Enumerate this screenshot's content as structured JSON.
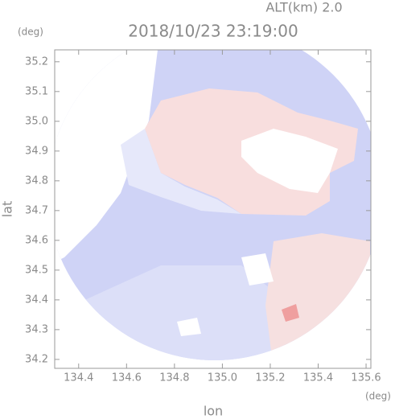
{
  "chart_data": {
    "type": "radar-map",
    "title": "2018/10/23 23:19:00",
    "subtitle": "ALT(km)  2.0",
    "y_unit": "(deg)",
    "x_unit": "(deg)",
    "x_label": "lon",
    "y_label": "lat",
    "xlim": [
      134.3,
      135.62
    ],
    "ylim": [
      34.17,
      35.24
    ],
    "xticks": [
      134.4,
      134.6,
      134.8,
      {
        "value": 135.0,
        "label": "135.0"
      },
      135.2,
      135.4,
      135.6
    ],
    "yticks": [
      34.2,
      34.3,
      34.4,
      34.5,
      34.6,
      34.7,
      34.8,
      34.9,
      {
        "value": 35.0,
        "label": "35.0"
      },
      35.1,
      35.2
    ]
  }
}
